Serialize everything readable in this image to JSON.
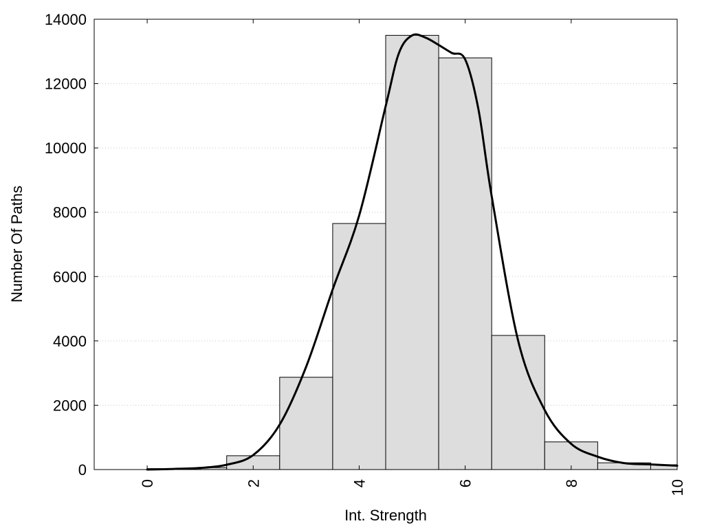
{
  "chart_data": {
    "type": "bar",
    "title": "",
    "xlabel": "Int. Strength",
    "ylabel": "Number Of Paths",
    "xlim": [
      -1,
      10
    ],
    "ylim": [
      0,
      14000
    ],
    "x_ticks": [
      0,
      2,
      4,
      6,
      8,
      10
    ],
    "x_tick_labels": [
      "0",
      "2",
      "4",
      "6",
      "8",
      "10"
    ],
    "y_ticks": [
      0,
      2000,
      4000,
      6000,
      8000,
      10000,
      12000,
      14000
    ],
    "y_tick_labels": [
      "0",
      "2000",
      "4000",
      "6000",
      "8000",
      "10000",
      "12000",
      "14000"
    ],
    "grid": "horizontal dotted",
    "bars": [
      {
        "x_start": 0,
        "x_end": 1,
        "value": 30
      },
      {
        "x_start": 1,
        "x_end": 1.5,
        "value": 60
      },
      {
        "x_start": 1.5,
        "x_end": 2.5,
        "value": 430
      },
      {
        "x_start": 2.5,
        "x_end": 3.5,
        "value": 2870
      },
      {
        "x_start": 3.5,
        "x_end": 4.5,
        "value": 7650
      },
      {
        "x_start": 4.5,
        "x_end": 5.5,
        "value": 13500
      },
      {
        "x_start": 5.5,
        "x_end": 6.5,
        "value": 12800
      },
      {
        "x_start": 6.5,
        "x_end": 7.5,
        "value": 4170
      },
      {
        "x_start": 7.5,
        "x_end": 8.5,
        "value": 860
      },
      {
        "x_start": 8.5,
        "x_end": 9.5,
        "value": 210
      },
      {
        "x_start": 9.5,
        "x_end": 10,
        "value": 150
      }
    ],
    "curve": {
      "x": [
        0,
        0.5,
        1,
        1.5,
        2,
        2.5,
        3,
        3.5,
        4,
        4.5,
        4.75,
        5,
        5.25,
        5.5,
        5.75,
        6,
        6.25,
        6.5,
        7,
        7.5,
        8,
        8.5,
        9,
        9.5,
        10
      ],
      "y": [
        0,
        20,
        50,
        150,
        450,
        1400,
        3200,
        5600,
        7900,
        11300,
        12950,
        13500,
        13430,
        13200,
        12950,
        12750,
        11200,
        8500,
        4000,
        1850,
        800,
        400,
        200,
        160,
        120
      ]
    },
    "colors": {
      "bar_fill": "#dddddd",
      "bar_stroke": "#000000",
      "curve": "#000000",
      "grid": "#c8c8c8",
      "axes": "#000000"
    }
  }
}
